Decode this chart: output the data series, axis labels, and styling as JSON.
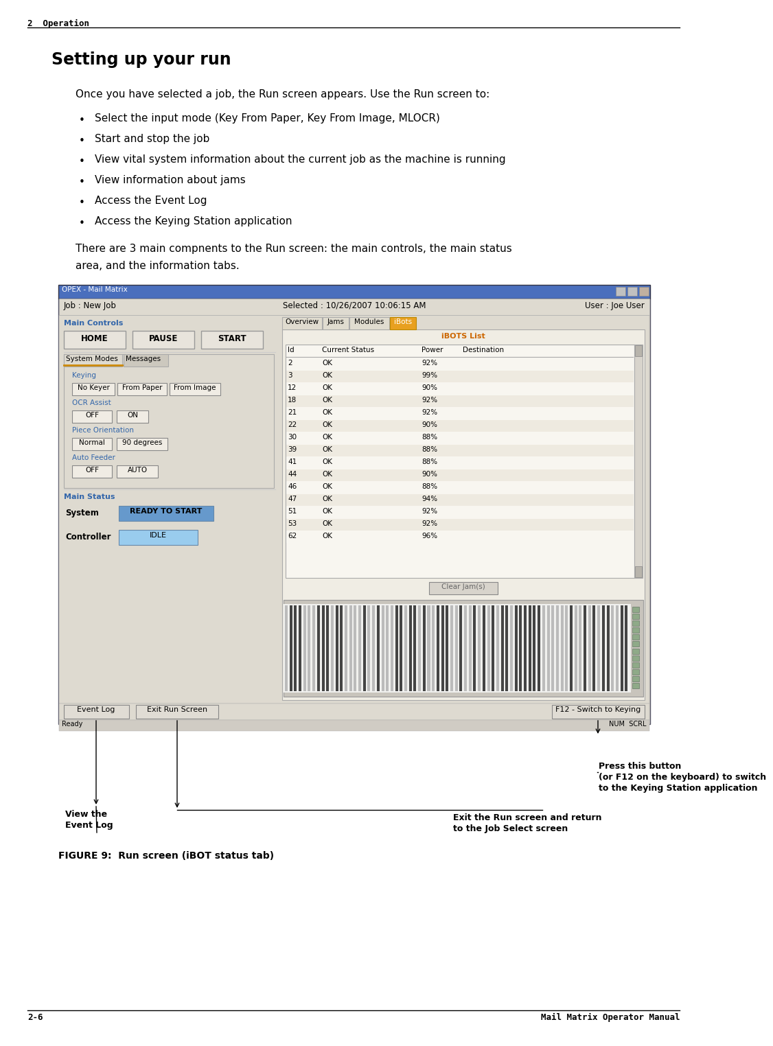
{
  "bg_color": "#ffffff",
  "header_text": "2  Operation",
  "title": "Setting up your run",
  "intro": "Once you have selected a job, the Run screen appears. Use the Run screen to:",
  "bullets": [
    "Select the input mode (Key From Paper, Key From Image, MLOCR)",
    "Start and stop the job",
    "View vital system information about the current job as the machine is running",
    "View information about jams",
    "Access the Event Log",
    "Access the Keying Station application"
  ],
  "para2_line1": "There are 3 main compnents to the Run screen: the main controls, the main status",
  "para2_line2": "area, and the information tabs.",
  "figure_caption": "FIGURE 9:  Run screen (iBOT status tab)",
  "footer_left": "2-6",
  "footer_right": "Mail Matrix Operator Manual",
  "annotation_right_line1": "Press this button",
  "annotation_right_line2": "(or F12 on the keyboard) to switch",
  "annotation_right_line3": "to the Keying Station application",
  "annotation_bl_line1": "View the",
  "annotation_bl_line2": "Event Log",
  "annotation_br_line1": "Exit the Run screen and return",
  "annotation_br_line2": "to the Job Select screen",
  "win_title": "OPEX - Mail Matrix",
  "win_title_bar_color": "#4a6fbd",
  "win_bg": "#d4d0c8",
  "win_inner_bg": "#dedad0",
  "job_text": "Job : New Job",
  "selected_text": "Selected : 10/26/2007 10:06:15 AM",
  "user_text": "User : Joe User",
  "main_controls_label": "Main Controls",
  "btn_home": "HOME",
  "btn_pause": "PAUSE",
  "btn_start": "START",
  "tab_overview": "Overview",
  "tab_jams": "Jams",
  "tab_modules": "Modules",
  "tab_ibots": "iBots",
  "ibots_list_title": "iBOTS List",
  "ibot_ids": [
    2,
    3,
    12,
    18,
    21,
    22,
    30,
    39,
    41,
    44,
    46,
    47,
    51,
    53,
    62
  ],
  "ibot_statuses": [
    "OK",
    "OK",
    "OK",
    "OK",
    "OK",
    "OK",
    "OK",
    "OK",
    "OK",
    "OK",
    "OK",
    "OK",
    "OK",
    "OK",
    "OK"
  ],
  "ibot_powers": [
    "92%",
    "99%",
    "90%",
    "92%",
    "92%",
    "90%",
    "88%",
    "88%",
    "88%",
    "90%",
    "88%",
    "94%",
    "92%",
    "92%",
    "96%"
  ],
  "system_modes_tab": "System Modes",
  "messages_tab": "Messages",
  "keying_label": "Keying",
  "btn_no_keyer": "No Keyer",
  "btn_from_paper": "From Paper",
  "btn_from_image": "From Image",
  "ocr_label": "OCR Assist",
  "btn_off1": "OFF",
  "btn_on": "ON",
  "piece_label": "Piece Orientation",
  "btn_normal": "Normal",
  "btn_90": "90 degrees",
  "auto_label": "Auto Feeder",
  "btn_off2": "OFF",
  "btn_auto": "AUTO",
  "main_status_label": "Main Status",
  "system_label": "System",
  "system_status": "READY TO START",
  "controller_label": "Controller",
  "controller_status": "IDLE",
  "btn_event_log": "Event Log",
  "btn_exit_run": "Exit Run Screen",
  "btn_f12": "F12 - Switch to Keying",
  "label_color_blue": "#3366aa",
  "status_ready_bg": "#6699cc",
  "status_idle_bg": "#99ccee",
  "clear_jams_btn": "Clear Jam(s)",
  "ready_text": "Ready",
  "num_scrl_text": "NUM  SCRL"
}
